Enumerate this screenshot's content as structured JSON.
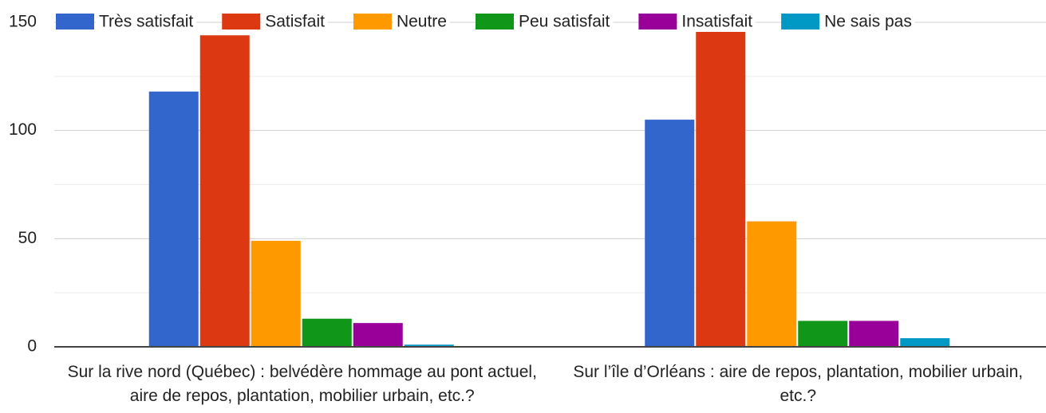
{
  "chart_data": {
    "type": "bar",
    "categories": [
      "Sur la rive nord (Québec) : belvédère hommage au pont actuel, aire de repos, plantation,   mobilier urbain, etc.?",
      "Sur l’île d’Orléans : aire de repos, plantation, mobilier urbain, etc.?"
    ],
    "series": [
      {
        "name": "Très satisfait",
        "color": "#3366cc",
        "values": [
          118,
          105
        ]
      },
      {
        "name": "Satisfait",
        "color": "#dc3912",
        "values": [
          144,
          146
        ]
      },
      {
        "name": "Neutre",
        "color": "#ff9900",
        "values": [
          49,
          58
        ]
      },
      {
        "name": "Peu satisfait",
        "color": "#109618",
        "values": [
          13,
          12
        ]
      },
      {
        "name": "Insatisfait",
        "color": "#990099",
        "values": [
          11,
          12
        ]
      },
      {
        "name": "Ne sais pas",
        "color": "#0099c6",
        "values": [
          1,
          4
        ]
      }
    ],
    "ylim": [
      0,
      150
    ],
    "yticks": [
      0,
      50,
      100,
      150
    ],
    "minor_yticks": [
      25,
      75,
      125
    ],
    "grid": true,
    "legend": "top"
  }
}
